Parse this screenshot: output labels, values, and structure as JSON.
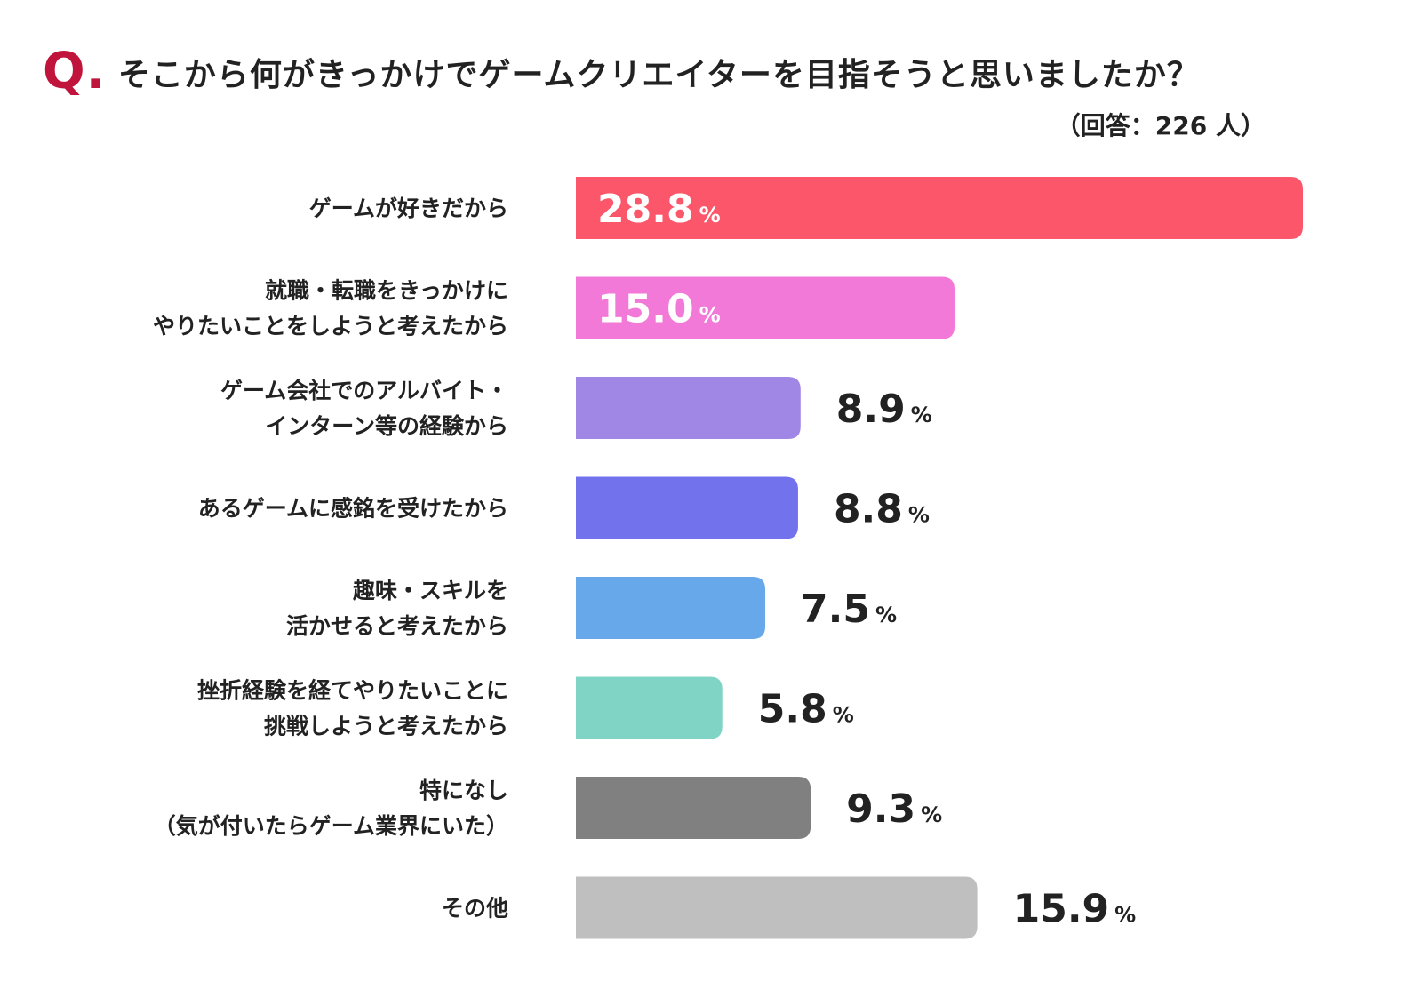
{
  "title": {
    "q_mark": "Q.",
    "question": "そこから何がきっかけでゲームクリエイターを目指そうと思いましたか？",
    "respondents": "（回答：226 人）"
  },
  "chart_data": {
    "type": "bar",
    "orientation": "horizontal",
    "unit": "%",
    "xlim": [
      0,
      28.8
    ],
    "grid": false,
    "legend": "none",
    "categories": [
      [
        "ゲームが好きだから"
      ],
      [
        "就職・転職をきっかけに",
        "やりたいことをしようと考えたから"
      ],
      [
        "ゲーム会社でのアルバイト・",
        "インターン等の経験から"
      ],
      [
        "あるゲームに感銘を受けたから"
      ],
      [
        "趣味・スキルを",
        "活かせると考えたから"
      ],
      [
        "挫折経験を経てやりたいことに",
        "挑戦しようと考えたから"
      ],
      [
        "特になし",
        "（気が付いたらゲーム業界にいた）"
      ],
      [
        "その他"
      ]
    ],
    "values": [
      28.8,
      15.0,
      8.9,
      8.8,
      7.5,
      5.8,
      9.3,
      15.9
    ],
    "value_labels": [
      "28.8",
      "15.0",
      "8.9",
      "8.8",
      "7.5",
      "5.8",
      "9.3",
      "15.9"
    ],
    "colors": [
      "#fc566a",
      "#f279d8",
      "#a087e6",
      "#7272ed",
      "#66a8ea",
      "#80d4c5",
      "#808080",
      "#bfbfbf"
    ],
    "label_inside": [
      true,
      true,
      false,
      false,
      false,
      false,
      false,
      false
    ]
  }
}
